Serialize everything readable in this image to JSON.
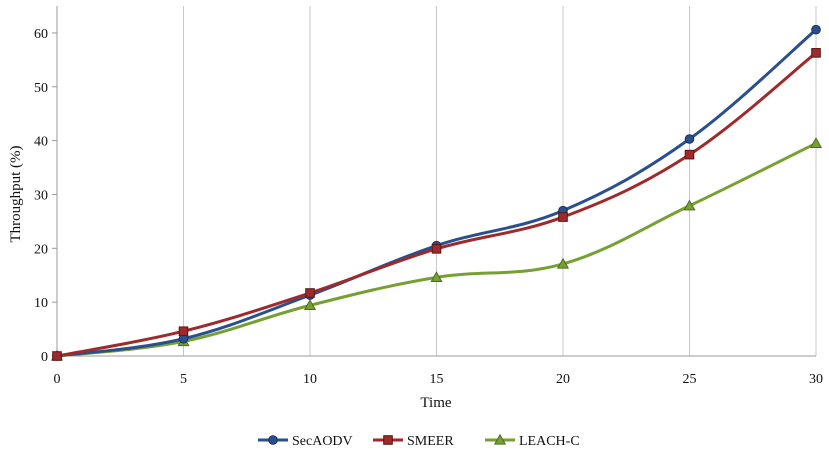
{
  "chart_data": {
    "type": "line",
    "xlabel": "Time",
    "ylabel": "Throughput (%)",
    "x": [
      0,
      5,
      10,
      15,
      20,
      25,
      30
    ],
    "xlim": [
      0,
      30
    ],
    "ylim": [
      0,
      65
    ],
    "xticks": [
      "0",
      "5",
      "10",
      "15",
      "20",
      "25",
      "30"
    ],
    "yticks": [
      "0",
      "10",
      "20",
      "30",
      "40",
      "50",
      "60"
    ],
    "grid": "vertical",
    "legend_position": "bottom",
    "series": [
      {
        "name": "SecAODV",
        "color": "#2a4f8f",
        "marker": "circle",
        "values": [
          0,
          3.2,
          11.3,
          20.5,
          27,
          40.3,
          60.6
        ]
      },
      {
        "name": "SMEER",
        "color": "#9e2a2b",
        "marker": "square",
        "values": [
          0,
          4.6,
          11.7,
          19.9,
          25.8,
          37.4,
          56.3
        ]
      },
      {
        "name": "LEACH-C",
        "color": "#77a032",
        "marker": "triangle",
        "values": [
          0,
          2.7,
          9.4,
          14.6,
          17.1,
          27.9,
          39.5
        ]
      }
    ]
  }
}
